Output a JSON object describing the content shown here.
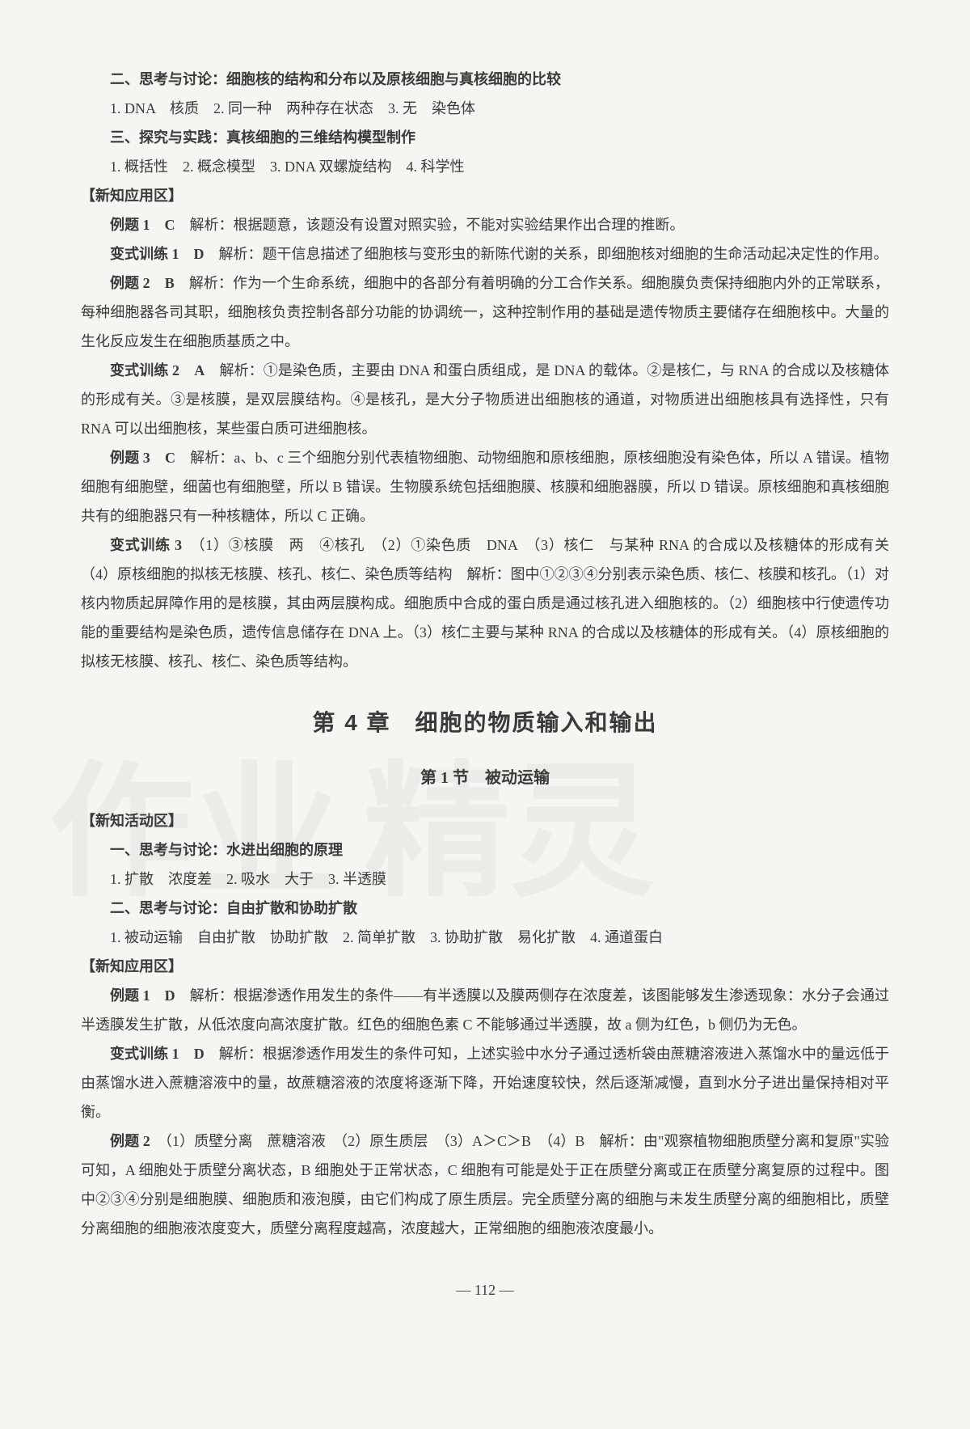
{
  "block1": {
    "heading1": "二、思考与讨论：细胞核的结构和分布以及原核细胞与真核细胞的比较",
    "line1": "1. DNA　核质　2. 同一种　两种存在状态　3. 无　染色体",
    "heading2": "三、探究与实践：真核细胞的三维结构模型制作",
    "line2": "1. 概括性　2. 概念模型　3. DNA 双螺旋结构　4. 科学性"
  },
  "app1": {
    "bracket": "【新知应用区】",
    "ex1_label": "例题 1　C",
    "ex1_text": "　解析：根据题意，该题没有设置对照实验，不能对实验结果作出合理的推断。",
    "var1_label": "变式训练 1　D",
    "var1_text": "　解析：题干信息描述了细胞核与变形虫的新陈代谢的关系，即细胞核对细胞的生命活动起决定性的作用。",
    "ex2_label": "例题 2　B",
    "ex2_text": "　解析：作为一个生命系统，细胞中的各部分有着明确的分工合作关系。细胞膜负责保持细胞内外的正常联系，每种细胞器各司其职，细胞核负责控制各部分功能的协调统一，这种控制作用的基础是遗传物质主要储存在细胞核中。大量的生化反应发生在细胞质基质之中。",
    "var2_label": "变式训练 2　A",
    "var2_text": "　解析：①是染色质，主要由 DNA 和蛋白质组成，是 DNA 的载体。②是核仁，与 RNA 的合成以及核糖体的形成有关。③是核膜，是双层膜结构。④是核孔，是大分子物质进出细胞核的通道，对物质进出细胞核具有选择性，只有 RNA 可以出细胞核，某些蛋白质可进细胞核。",
    "ex3_label": "例题 3　C",
    "ex3_text": "　解析：a、b、c 三个细胞分别代表植物细胞、动物细胞和原核细胞，原核细胞没有染色体，所以 A 错误。植物细胞有细胞壁，细菌也有细胞壁，所以 B 错误。生物膜系统包括细胞膜、核膜和细胞器膜，所以 D 错误。原核细胞和真核细胞共有的细胞器只有一种核糖体，所以 C 正确。",
    "var3_label": "变式训练 3",
    "var3_text": "　（1）③核膜　两　④核孔　（2）①染色质　DNA　（3）核仁　与某种 RNA 的合成以及核糖体的形成有关　（4）原核细胞的拟核无核膜、核孔、核仁、染色质等结构　解析：图中①②③④分别表示染色质、核仁、核膜和核孔。（1）对核内物质起屏障作用的是核膜，其由两层膜构成。细胞质中合成的蛋白质是通过核孔进入细胞核的。（2）细胞核中行使遗传功能的重要结构是染色质，遗传信息储存在 DNA 上。（3）核仁主要与某种 RNA 的合成以及核糖体的形成有关。（4）原核细胞的拟核无核膜、核孔、核仁、染色质等结构。"
  },
  "chapter": {
    "title": "第 4 章　细胞的物质输入和输出",
    "section": "第 1 节　被动运输"
  },
  "act2": {
    "bracket": "【新知活动区】",
    "heading1": "一、思考与讨论：水进出细胞的原理",
    "line1": "1. 扩散　浓度差　2. 吸水　大于　3. 半透膜",
    "heading2": "二、思考与讨论：自由扩散和协助扩散",
    "line2": "1. 被动运输　自由扩散　协助扩散　2. 简单扩散　3. 协助扩散　易化扩散　4. 通道蛋白"
  },
  "app2": {
    "bracket": "【新知应用区】",
    "ex1_label": "例题 1　D",
    "ex1_text": "　解析：根据渗透作用发生的条件——有半透膜以及膜两侧存在浓度差，该图能够发生渗透现象：水分子会通过半透膜发生扩散，从低浓度向高浓度扩散。红色的细胞色素 C 不能够通过半透膜，故 a 侧为红色，b 侧仍为无色。",
    "var1_label": "变式训练 1　D",
    "var1_text": "　解析：根据渗透作用发生的条件可知，上述实验中水分子通过透析袋由蔗糖溶液进入蒸馏水中的量远低于由蒸馏水进入蔗糖溶液中的量，故蔗糖溶液的浓度将逐渐下降，开始速度较快，然后逐渐减慢，直到水分子进出量保持相对平衡。",
    "ex2_label": "例题 2",
    "ex2_text": "　（1）质壁分离　蔗糖溶液　（2）原生质层　（3）A＞C＞B　（4）B　解析：由\"观察植物细胞质壁分离和复原\"实验可知，A 细胞处于质壁分离状态，B 细胞处于正常状态，C 细胞有可能是处于正在质壁分离或正在质壁分离复原的过程中。图中②③④分别是细胞膜、细胞质和液泡膜，由它们构成了原生质层。完全质壁分离的细胞与未发生质壁分离的细胞相比，质壁分离细胞的细胞液浓度变大，质壁分离程度越高，浓度越大，正常细胞的细胞液浓度最小。"
  },
  "pageNumber": "— 112 —"
}
